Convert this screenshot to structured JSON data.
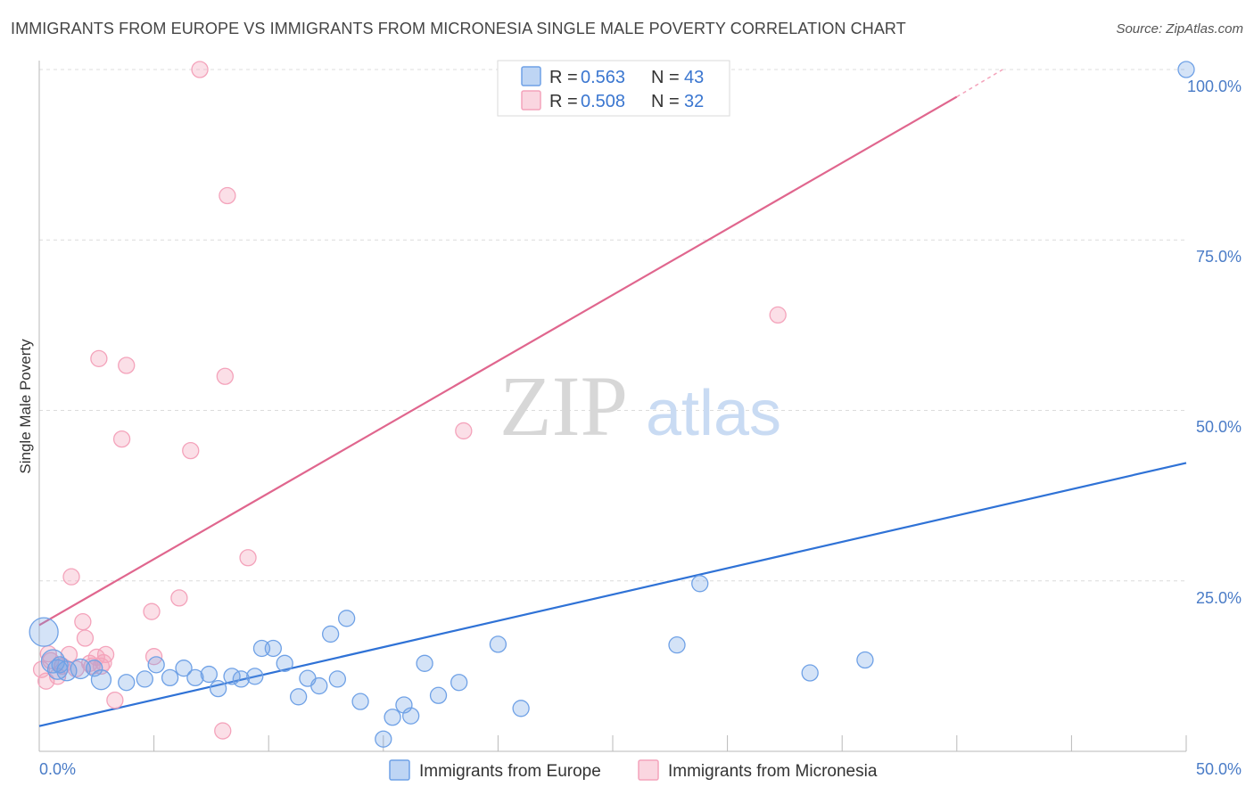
{
  "header": {
    "title": "IMMIGRANTS FROM EUROPE VS IMMIGRANTS FROM MICRONESIA SINGLE MALE POVERTY CORRELATION CHART",
    "source": "Source: ZipAtlas.com"
  },
  "watermark": {
    "zip": "ZIP",
    "atlas": "atlas"
  },
  "legend_stats": [
    {
      "r_label": "R =",
      "r_value": "0.563",
      "n_label": "N =",
      "n_value": "43"
    },
    {
      "r_label": "R =",
      "r_value": "0.508",
      "n_label": "N =",
      "n_value": "32"
    }
  ],
  "chart_data": {
    "type": "scatter",
    "title": "IMMIGRANTS FROM EUROPE VS IMMIGRANTS FROM MICRONESIA SINGLE MALE POVERTY CORRELATION CHART",
    "xlabel": "",
    "ylabel": "Single Male Poverty",
    "xlim": [
      0,
      50
    ],
    "ylim": [
      0,
      100
    ],
    "x_tick_labels": [
      "0.0%",
      "50.0%"
    ],
    "y_tick_labels": [
      "25.0%",
      "50.0%",
      "75.0%",
      "100.0%"
    ],
    "y_tick_values": [
      25,
      50,
      75,
      100
    ],
    "legend_position": "top-center",
    "series": [
      {
        "name": "Immigrants from Europe",
        "color": "#6fa1e6",
        "line_color": "#2f72d6",
        "trendline": {
          "x": [
            0,
            50
          ],
          "y": [
            3.7,
            42.3
          ]
        },
        "points": [
          [
            0.2,
            17.5
          ],
          [
            0.6,
            13.2
          ],
          [
            0.8,
            12.0
          ],
          [
            1.2,
            11.8
          ],
          [
            1.8,
            12.1
          ],
          [
            2.7,
            10.5
          ],
          [
            2.4,
            12.2
          ],
          [
            3.8,
            10.1
          ],
          [
            4.6,
            10.6
          ],
          [
            5.1,
            12.7
          ],
          [
            5.7,
            10.8
          ],
          [
            6.3,
            12.2
          ],
          [
            6.8,
            10.8
          ],
          [
            7.4,
            11.3
          ],
          [
            7.8,
            9.2
          ],
          [
            8.4,
            11.0
          ],
          [
            8.8,
            10.6
          ],
          [
            9.4,
            11.0
          ],
          [
            9.7,
            15.1
          ],
          [
            10.2,
            15.1
          ],
          [
            10.7,
            12.9
          ],
          [
            11.3,
            8.0
          ],
          [
            11.7,
            10.7
          ],
          [
            12.2,
            9.6
          ],
          [
            12.7,
            17.2
          ],
          [
            13.0,
            10.6
          ],
          [
            13.4,
            19.5
          ],
          [
            14.0,
            7.3
          ],
          [
            15.0,
            1.8
          ],
          [
            15.4,
            5.0
          ],
          [
            15.9,
            6.8
          ],
          [
            16.2,
            5.2
          ],
          [
            16.8,
            12.9
          ],
          [
            17.4,
            8.2
          ],
          [
            18.3,
            10.1
          ],
          [
            20.0,
            15.7
          ],
          [
            21.0,
            6.3
          ],
          [
            27.8,
            15.6
          ],
          [
            28.8,
            24.6
          ],
          [
            33.6,
            11.5
          ],
          [
            36.0,
            13.4
          ],
          [
            50.0,
            100.0
          ],
          [
            0.9,
            12.7
          ]
        ]
      },
      {
        "name": "Immigrants from Micronesia",
        "color": "#f4a3bb",
        "line_color": "#e0668e",
        "trendline": {
          "x": [
            0,
            40
          ],
          "y": [
            18.5,
            96.0
          ],
          "dashed_to": [
            42,
            100
          ]
        },
        "points": [
          [
            0.1,
            12.0
          ],
          [
            0.3,
            10.3
          ],
          [
            0.5,
            13.3
          ],
          [
            0.8,
            11.0
          ],
          [
            1.0,
            12.5
          ],
          [
            1.3,
            14.2
          ],
          [
            1.4,
            25.6
          ],
          [
            1.9,
            19.0
          ],
          [
            2.0,
            16.6
          ],
          [
            2.3,
            12.5
          ],
          [
            2.5,
            13.8
          ],
          [
            2.6,
            57.6
          ],
          [
            2.7,
            12.5
          ],
          [
            2.8,
            13.0
          ],
          [
            2.9,
            14.2
          ],
          [
            3.3,
            7.5
          ],
          [
            3.6,
            45.8
          ],
          [
            3.8,
            56.6
          ],
          [
            4.9,
            20.5
          ],
          [
            5.0,
            13.9
          ],
          [
            6.1,
            22.5
          ],
          [
            6.6,
            44.1
          ],
          [
            7.0,
            100.0
          ],
          [
            8.0,
            3.0
          ],
          [
            8.1,
            55.0
          ],
          [
            8.2,
            81.5
          ],
          [
            9.1,
            28.4
          ],
          [
            18.5,
            47.0
          ],
          [
            32.2,
            64.0
          ],
          [
            0.4,
            14.3
          ],
          [
            1.6,
            12.1
          ],
          [
            2.2,
            12.9
          ]
        ]
      }
    ]
  }
}
